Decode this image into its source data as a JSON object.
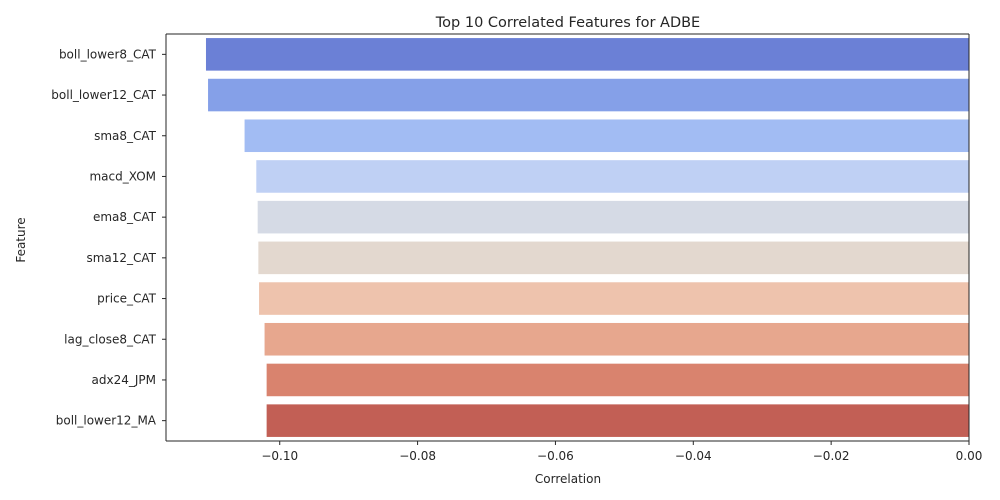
{
  "chart_data": {
    "type": "bar",
    "orientation": "horizontal",
    "title": "Top 10 Correlated Features for ADBE",
    "xlabel": "Correlation",
    "ylabel": "Feature",
    "xlim": [
      -0.1165,
      0.0
    ],
    "x_ticks": [
      -0.1,
      -0.08,
      -0.06,
      -0.04,
      -0.02,
      0.0
    ],
    "x_tick_labels": [
      "−0.10",
      "−0.08",
      "−0.06",
      "−0.04",
      "−0.02",
      "0.00"
    ],
    "grid": false,
    "legend": "none",
    "categories": [
      "boll_lower8_CAT",
      "boll_lower12_CAT",
      "sma8_CAT",
      "macd_XOM",
      "ema8_CAT",
      "sma12_CAT",
      "price_CAT",
      "lag_close8_CAT",
      "adx24_JPM",
      "boll_lower12_MA"
    ],
    "values": [
      -0.1107,
      -0.1104,
      -0.1051,
      -0.1034,
      -0.1032,
      -0.1031,
      -0.103,
      -0.1022,
      -0.1019,
      -0.1019
    ],
    "colors": [
      "#6b80d6",
      "#85a0e8",
      "#a2bcf3",
      "#bfd0f4",
      "#d5dae5",
      "#e3d8cf",
      "#eec3ad",
      "#e7a78e",
      "#d9836e",
      "#c25f55"
    ]
  }
}
